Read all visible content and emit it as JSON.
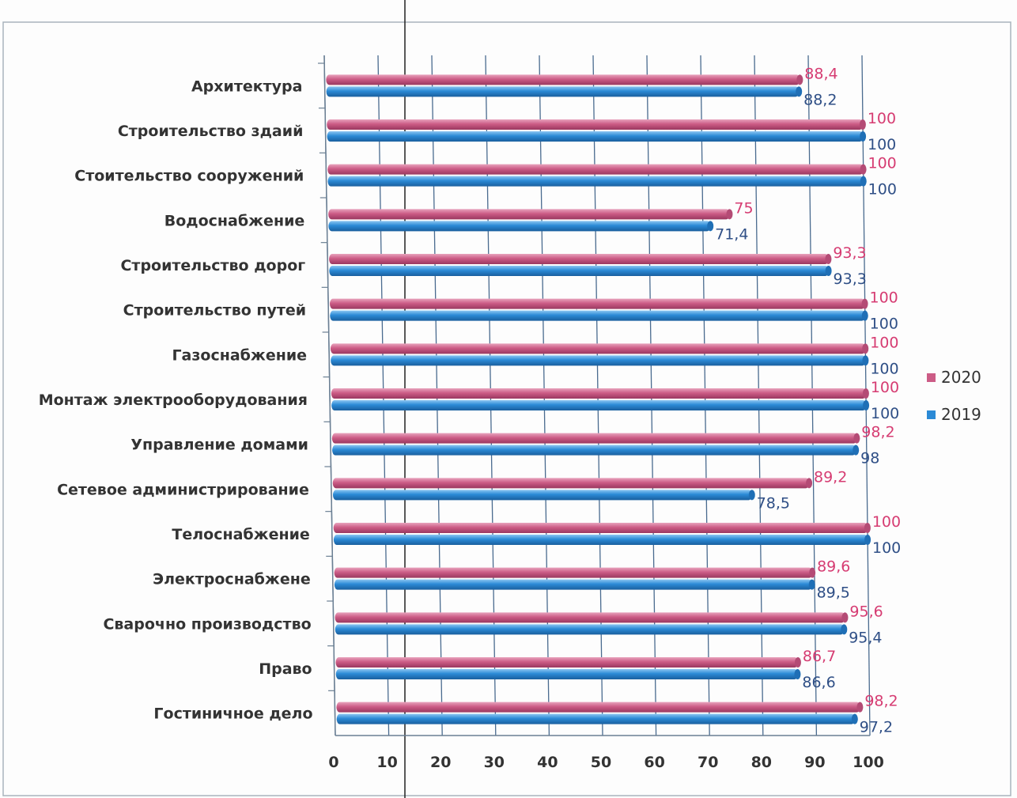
{
  "chart_data": {
    "type": "bar",
    "orientation": "horizontal",
    "categories": [
      "Архитектура",
      "Строительство здаий",
      "Стоительство сооружений",
      "Водоснабжение",
      "Строительство дорог",
      "Строительство путей",
      "Газоснабжение",
      "Монтаж электрооборудования",
      "Управление домами",
      "Сетевое администрирование",
      "Телоснабжение",
      "Электроснабжене",
      "Сварочно производство",
      "Право",
      "Гостиничное дело"
    ],
    "series": [
      {
        "name": "2020",
        "color": "#cc5c86",
        "values": [
          88.4,
          100,
          100,
          75,
          93.3,
          100,
          100,
          100,
          98.2,
          89.2,
          100,
          89.6,
          95.6,
          86.7,
          98.2
        ],
        "labels": [
          "88,4",
          "100",
          "100",
          "75",
          "93,3",
          "100",
          "100",
          "100",
          "98,2",
          "89,2",
          "100",
          "89,6",
          "95,6",
          "86,7",
          "98,2"
        ]
      },
      {
        "name": "2019",
        "color": "#2b8ad6",
        "values": [
          88.2,
          100,
          100,
          71.4,
          93.3,
          100,
          100,
          100,
          98,
          78.5,
          100,
          89.5,
          95.4,
          86.6,
          97.2
        ],
        "labels": [
          "88,2",
          "100",
          "100",
          "71,4",
          "93,3",
          "100",
          "100",
          "100",
          "98",
          "78,5",
          "100",
          "89,5",
          "95,4",
          "86,6",
          "97,2"
        ]
      }
    ],
    "xlim": [
      0,
      100
    ],
    "xticks": [
      "0",
      "10",
      "20",
      "30",
      "40",
      "50",
      "60",
      "70",
      "80",
      "90",
      "100"
    ],
    "grid": true,
    "legend_position": "right",
    "label_colors": {
      "2020": "#d63c72",
      "2019": "#2f4f86"
    }
  }
}
